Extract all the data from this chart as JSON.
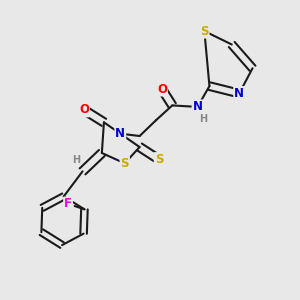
{
  "background_color": "#e8e8e8",
  "bond_color": "#1a1a1a",
  "bond_width": 1.5,
  "atom_colors": {
    "O": "#ff0000",
    "N": "#0000cc",
    "S": "#ccaa00",
    "F": "#ee00ee",
    "H": "#888888",
    "C": "#1a1a1a"
  },
  "font_size": 8.5,
  "fig_width": 3.0,
  "fig_height": 3.0,
  "dpi": 100
}
